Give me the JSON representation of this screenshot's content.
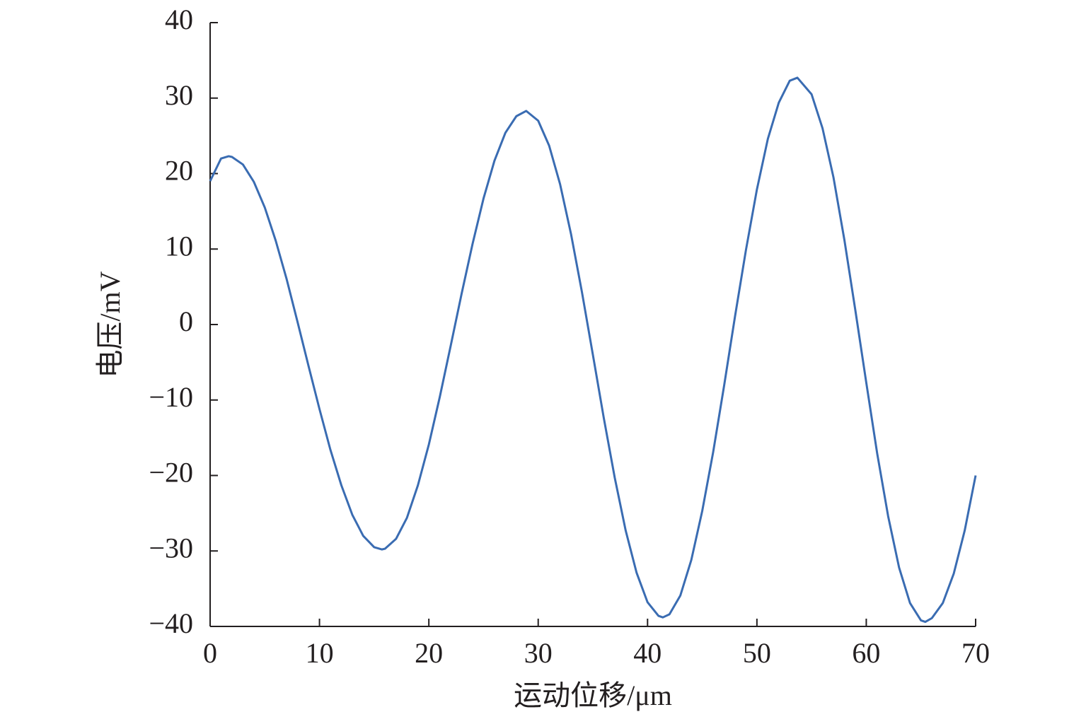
{
  "chart_data": {
    "type": "line",
    "x_label": "运动位移/μm",
    "y_label": "电压/mV",
    "xlim": [
      0,
      70
    ],
    "xticks": [
      0,
      10,
      20,
      30,
      40,
      50,
      60,
      70
    ],
    "ylim": [
      -40,
      40
    ],
    "yticks": [
      {
        "value": -40,
        "label": "−40"
      },
      {
        "value": -30,
        "label": "−30"
      },
      {
        "value": -20,
        "label": "−20"
      },
      {
        "value": -10,
        "label": "−10"
      },
      0,
      10,
      20,
      30,
      40
    ],
    "x": [
      0,
      1,
      1.7,
      2,
      3,
      4,
      5,
      6,
      7,
      8,
      9,
      10,
      11,
      12,
      13,
      14,
      15,
      15.7,
      16,
      17,
      18,
      19,
      20,
      21,
      22,
      23,
      24,
      25,
      26,
      27,
      28,
      28.9,
      30,
      31,
      32,
      33,
      34,
      35,
      36,
      37,
      38,
      39,
      40,
      41,
      41.4,
      42,
      43,
      44,
      45,
      46,
      47,
      48,
      49,
      50,
      51,
      52,
      53,
      53.7,
      55,
      56,
      57,
      58,
      59,
      60,
      61,
      62,
      63,
      64,
      65,
      65.4,
      66,
      67,
      68,
      69,
      70
    ],
    "series": [
      {
        "color": "#3a6cb2",
        "values": [
          19,
          22.0,
          22.3,
          22.2,
          21.2,
          18.9,
          15.5,
          11.1,
          6.0,
          0.3,
          -5.5,
          -11.2,
          -16.6,
          -21.3,
          -25.2,
          -28.0,
          -29.5,
          -29.8,
          -29.7,
          -28.4,
          -25.6,
          -21.3,
          -15.9,
          -9.6,
          -2.8,
          4.1,
          10.7,
          16.7,
          21.7,
          25.4,
          27.6,
          28.3,
          27.0,
          23.7,
          18.6,
          12.0,
          4.3,
          -4.0,
          -12.4,
          -20.3,
          -27.3,
          -32.9,
          -36.8,
          -38.6,
          -38.8,
          -38.4,
          -35.9,
          -31.2,
          -24.7,
          -16.9,
          -8.1,
          1.1,
          9.9,
          17.9,
          24.6,
          29.4,
          32.3,
          32.7,
          30.5,
          26.0,
          19.5,
          11.2,
          1.9,
          -7.7,
          -17.1,
          -25.4,
          -32.2,
          -36.9,
          -39.2,
          -39.4,
          -38.9,
          -36.9,
          -33.0,
          -27.3,
          -20.0
        ]
      }
    ]
  }
}
